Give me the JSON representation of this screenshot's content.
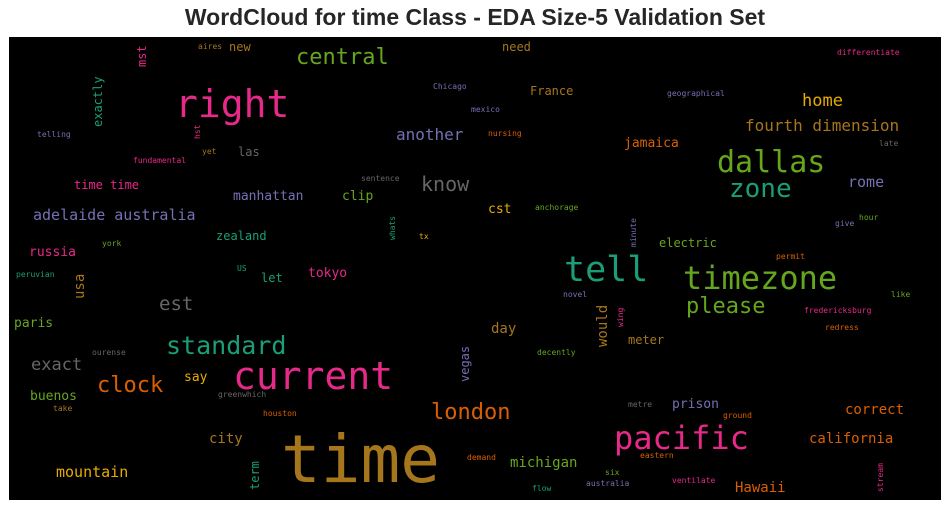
{
  "title": "WordCloud for time Class - EDA Size-5 Validation Set",
  "chart_data": {
    "type": "wordcloud",
    "title": "WordCloud for time Class - EDA Size-5 Validation Set",
    "background": "#000000",
    "colormap": "Dark2",
    "words": [
      {
        "text": "time",
        "weight": 1.0,
        "color": "#a6761d"
      },
      {
        "text": "current",
        "weight": 0.58,
        "color": "#e7298a"
      },
      {
        "text": "right",
        "weight": 0.56,
        "color": "#e7298a"
      },
      {
        "text": "pacific",
        "weight": 0.5,
        "color": "#e7298a"
      },
      {
        "text": "tell",
        "weight": 0.5,
        "color": "#1b9e77"
      },
      {
        "text": "timezone",
        "weight": 0.5,
        "color": "#66a61e"
      },
      {
        "text": "dallas",
        "weight": 0.44,
        "color": "#66a61e"
      },
      {
        "text": "zone",
        "weight": 0.38,
        "color": "#1b9e77"
      },
      {
        "text": "standard",
        "weight": 0.36,
        "color": "#1b9e77"
      },
      {
        "text": "central",
        "weight": 0.33,
        "color": "#66a61e"
      },
      {
        "text": "please",
        "weight": 0.33,
        "color": "#66a61e"
      },
      {
        "text": "clock",
        "weight": 0.33,
        "color": "#d95f02"
      },
      {
        "text": "london",
        "weight": 0.33,
        "color": "#d95f02"
      },
      {
        "text": "know",
        "weight": 0.3,
        "color": "#666666"
      },
      {
        "text": "est",
        "weight": 0.28,
        "color": "#666666"
      },
      {
        "text": "exact",
        "weight": 0.26,
        "color": "#666666"
      },
      {
        "text": "home",
        "weight": 0.25,
        "color": "#e6ab02"
      },
      {
        "text": "fourth dimension",
        "weight": 0.23,
        "color": "#a6761d"
      },
      {
        "text": "another",
        "weight": 0.23,
        "color": "#7570b3"
      },
      {
        "text": "rome",
        "weight": 0.22,
        "color": "#7570b3"
      },
      {
        "text": "adelaide australia",
        "weight": 0.22,
        "color": "#7570b3"
      },
      {
        "text": "mountain",
        "weight": 0.22,
        "color": "#e6ab02"
      },
      {
        "text": "michigan",
        "weight": 0.2,
        "color": "#66a61e"
      },
      {
        "text": "city",
        "weight": 0.2,
        "color": "#a6761d"
      },
      {
        "text": "california",
        "weight": 0.2,
        "color": "#d95f02"
      },
      {
        "text": "correct",
        "weight": 0.2,
        "color": "#d95f02"
      },
      {
        "text": "Hawaii",
        "weight": 0.2,
        "color": "#d95f02"
      },
      {
        "text": "day",
        "weight": 0.2,
        "color": "#a6761d"
      },
      {
        "text": "usa",
        "weight": 0.2,
        "color": "#a6761d"
      },
      {
        "text": "would",
        "weight": 0.2,
        "color": "#a6761d"
      },
      {
        "text": "jamaica",
        "weight": 0.18,
        "color": "#d95f02"
      },
      {
        "text": "prison",
        "weight": 0.18,
        "color": "#7570b3"
      },
      {
        "text": "cst",
        "weight": 0.18,
        "color": "#e6ab02"
      },
      {
        "text": "clip",
        "weight": 0.18,
        "color": "#66a61e"
      },
      {
        "text": "say",
        "weight": 0.18,
        "color": "#e6ab02"
      },
      {
        "text": "tokyo",
        "weight": 0.17,
        "color": "#e7298a"
      },
      {
        "text": "russia",
        "weight": 0.17,
        "color": "#e7298a"
      },
      {
        "text": "buenos",
        "weight": 0.17,
        "color": "#66a61e"
      },
      {
        "text": "paris",
        "weight": 0.17,
        "color": "#66a61e"
      },
      {
        "text": "manhattan",
        "weight": 0.17,
        "color": "#7570b3"
      },
      {
        "text": "zealand",
        "weight": 0.16,
        "color": "#1b9e77"
      },
      {
        "text": "time time",
        "weight": 0.16,
        "color": "#e7298a"
      },
      {
        "text": "las",
        "weight": 0.16,
        "color": "#666666"
      },
      {
        "text": "meter",
        "weight": 0.16,
        "color": "#a6761d"
      },
      {
        "text": "electric",
        "weight": 0.16,
        "color": "#66a61e"
      },
      {
        "text": "need",
        "weight": 0.16,
        "color": "#a6761d"
      },
      {
        "text": "France",
        "weight": 0.16,
        "color": "#a6761d"
      },
      {
        "text": "new",
        "weight": 0.15,
        "color": "#a6761d"
      },
      {
        "text": "let",
        "weight": 0.15,
        "color": "#1b9e77"
      },
      {
        "text": "term",
        "weight": 0.15,
        "color": "#1b9e77"
      },
      {
        "text": "vegas",
        "weight": 0.15,
        "color": "#7570b3"
      },
      {
        "text": "exactly",
        "weight": 0.15,
        "color": "#1b9e77"
      },
      {
        "text": "mst",
        "weight": 0.15,
        "color": "#e7298a"
      },
      {
        "text": "Chicago",
        "weight": 0.1,
        "color": "#7570b3"
      },
      {
        "text": "mexico",
        "weight": 0.1,
        "color": "#7570b3"
      },
      {
        "text": "nursing",
        "weight": 0.1,
        "color": "#d95f02"
      },
      {
        "text": "geographical",
        "weight": 0.1,
        "color": "#7570b3"
      },
      {
        "text": "differentiate",
        "weight": 0.1,
        "color": "#e7298a"
      },
      {
        "text": "late",
        "weight": 0.1,
        "color": "#666666"
      },
      {
        "text": "aires",
        "weight": 0.1,
        "color": "#a6761d"
      },
      {
        "text": "telling",
        "weight": 0.1,
        "color": "#7570b3"
      },
      {
        "text": "hst",
        "weight": 0.1,
        "color": "#e7298a"
      },
      {
        "text": "yet",
        "weight": 0.1,
        "color": "#a6761d"
      },
      {
        "text": "fundamental",
        "weight": 0.1,
        "color": "#e7298a"
      },
      {
        "text": "sentence",
        "weight": 0.1,
        "color": "#666666"
      },
      {
        "text": "whats",
        "weight": 0.1,
        "color": "#1b9e77"
      },
      {
        "text": "tx",
        "weight": 0.1,
        "color": "#e6ab02"
      },
      {
        "text": "anchorage",
        "weight": 0.1,
        "color": "#66a61e"
      },
      {
        "text": "minute",
        "weight": 0.1,
        "color": "#7570b3"
      },
      {
        "text": "hour",
        "weight": 0.1,
        "color": "#66a61e"
      },
      {
        "text": "give",
        "weight": 0.1,
        "color": "#7570b3"
      },
      {
        "text": "york",
        "weight": 0.1,
        "color": "#66a61e"
      },
      {
        "text": "peruvian",
        "weight": 0.1,
        "color": "#1b9e77"
      },
      {
        "text": "US",
        "weight": 0.1,
        "color": "#1b9e77"
      },
      {
        "text": "permit",
        "weight": 0.1,
        "color": "#d95f02"
      },
      {
        "text": "novel",
        "weight": 0.1,
        "color": "#7570b3"
      },
      {
        "text": "wing",
        "weight": 0.1,
        "color": "#e7298a"
      },
      {
        "text": "fredericksburg",
        "weight": 0.1,
        "color": "#e7298a"
      },
      {
        "text": "like",
        "weight": 0.1,
        "color": "#66a61e"
      },
      {
        "text": "redress",
        "weight": 0.1,
        "color": "#d95f02"
      },
      {
        "text": "ourense",
        "weight": 0.1,
        "color": "#666666"
      },
      {
        "text": "decently",
        "weight": 0.1,
        "color": "#66a61e"
      },
      {
        "text": "greenwhich",
        "weight": 0.1,
        "color": "#666666"
      },
      {
        "text": "take",
        "weight": 0.1,
        "color": "#a6761d"
      },
      {
        "text": "houston",
        "weight": 0.1,
        "color": "#d95f02"
      },
      {
        "text": "metre",
        "weight": 0.1,
        "color": "#666666"
      },
      {
        "text": "ground",
        "weight": 0.1,
        "color": "#d95f02"
      },
      {
        "text": "demand",
        "weight": 0.1,
        "color": "#d95f02"
      },
      {
        "text": "six",
        "weight": 0.1,
        "color": "#66a61e"
      },
      {
        "text": "eastern",
        "weight": 0.1,
        "color": "#d95f02"
      },
      {
        "text": "flow",
        "weight": 0.1,
        "color": "#1b9e77"
      },
      {
        "text": "australia",
        "weight": 0.1,
        "color": "#7570b3"
      },
      {
        "text": "ventilate",
        "weight": 0.1,
        "color": "#e7298a"
      },
      {
        "text": "stream",
        "weight": 0.1,
        "color": "#e7298a"
      }
    ]
  }
}
